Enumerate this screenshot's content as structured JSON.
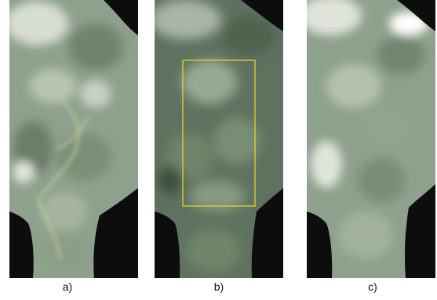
{
  "captions": {
    "a": "a)",
    "b": "b)",
    "c": "c)"
  },
  "colors": {
    "background": "#0d0d0d",
    "surface_base": "#8fa48f",
    "surface_dark": "#4e604f",
    "surface_light": "#c9d2c4",
    "highlight_box": "#e5d233"
  }
}
